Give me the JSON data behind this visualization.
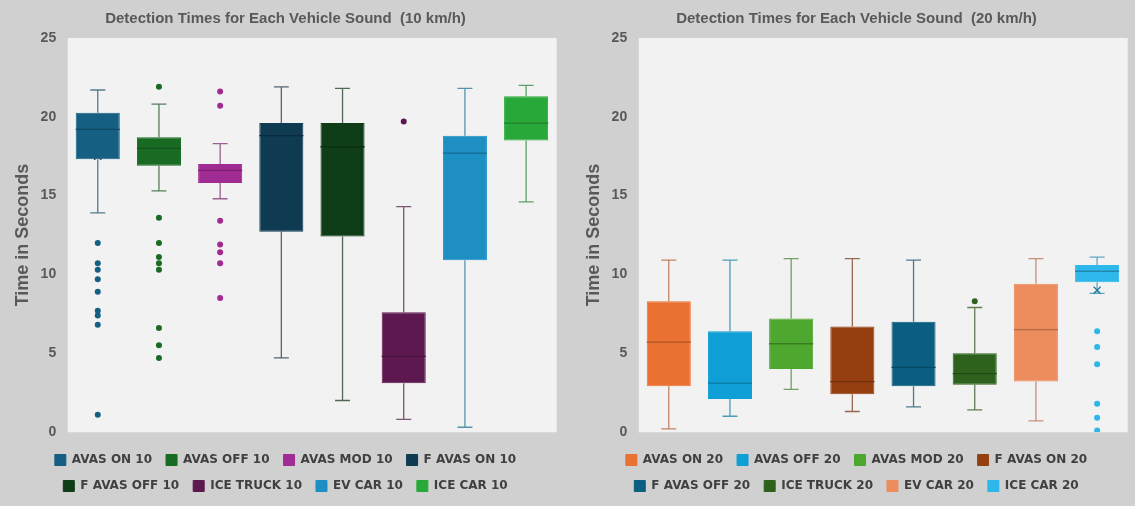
{
  "chart_data": [
    {
      "type": "box",
      "title": "Detection Times for Each Vehicle Sound  (10 km/h)",
      "ylabel": "Time in Seconds",
      "categories": [
        null,
        null,
        null,
        null,
        null,
        null,
        null,
        null
      ],
      "ylim": [
        0,
        25
      ],
      "yticks": [
        0,
        5,
        10,
        15,
        20,
        25
      ],
      "tick_labels": "y",
      "legend": "bottom",
      "series": [
        {
          "name": "AVAS ON 10",
          "color": "#156082",
          "boxes": [
            {
              "low": 13.9,
              "q1": 17.3,
              "median": 19.2,
              "q3": 20.25,
              "high": 21.7,
              "mean": 17.5,
              "outliers": [
                12.0,
                10.7,
                10.3,
                9.7,
                8.9,
                7.7,
                7.4,
                6.8,
                1.1
              ]
            },
            null,
            null,
            null,
            null,
            null,
            null,
            null
          ]
        },
        {
          "name": "AVAS OFF 10",
          "color": "#196b24",
          "boxes": [
            null,
            {
              "low": 15.3,
              "q1": 16.9,
              "median": 18.0,
              "q3": 18.7,
              "high": 20.8,
              "mean": 17.3,
              "outliers": [
                21.9,
                13.6,
                12.0,
                11.1,
                10.7,
                10.3,
                6.6,
                5.5,
                4.7
              ]
            },
            null,
            null,
            null,
            null,
            null,
            null
          ]
        },
        {
          "name": "AVAS MOD 10",
          "color": "#a02b93",
          "boxes": [
            null,
            null,
            {
              "low": 14.8,
              "q1": 15.8,
              "median": 16.6,
              "q3": 17.0,
              "high": 18.3,
              "mean": 16.2,
              "outliers": [
                21.6,
                20.7,
                13.4,
                11.9,
                11.4,
                10.7,
                8.5
              ]
            },
            null,
            null,
            null,
            null,
            null
          ]
        },
        {
          "name": "F AVAS ON 10",
          "color": "#0e3a52",
          "boxes": [
            null,
            null,
            null,
            {
              "low": 4.7,
              "q1": 12.7,
              "median": 18.8,
              "q3": 19.6,
              "high": 21.9,
              "mean": 16.3
            },
            null,
            null,
            null,
            null
          ]
        },
        {
          "name": "F AVAS OFF 10",
          "color": "#0e3d17",
          "boxes": [
            null,
            null,
            null,
            null,
            {
              "low": 2.0,
              "q1": 12.4,
              "median": 18.1,
              "q3": 19.6,
              "high": 21.8,
              "mean": 15.9
            },
            null,
            null,
            null
          ]
        },
        {
          "name": "ICE TRUCK 10",
          "color": "#5e1850",
          "boxes": [
            null,
            null,
            null,
            null,
            null,
            {
              "low": 0.8,
              "q1": 3.1,
              "median": 4.8,
              "q3": 7.6,
              "high": 14.3,
              "mean": 5.7,
              "outliers": [
                19.7
              ]
            },
            null,
            null
          ]
        },
        {
          "name": "EV CAR 10",
          "color": "#1e8fc3",
          "boxes": [
            null,
            null,
            null,
            null,
            null,
            null,
            {
              "low": 0.3,
              "q1": 10.9,
              "median": 17.7,
              "q3": 18.8,
              "high": 21.8,
              "mean": 15.3
            },
            null
          ]
        },
        {
          "name": "ICE CAR 10",
          "color": "#29a83a",
          "boxes": [
            null,
            null,
            null,
            null,
            null,
            null,
            null,
            {
              "low": 14.6,
              "q1": 18.5,
              "median": 19.6,
              "q3": 21.3,
              "high": 22.0,
              "mean": 19.6
            }
          ]
        }
      ]
    },
    {
      "type": "box",
      "title": "Detection Times for Each Vehicle Sound  (20 km/h)",
      "ylabel": "Time in Seconds",
      "categories": [
        null,
        null,
        null,
        null,
        null,
        null,
        null,
        null
      ],
      "ylim": [
        0,
        25
      ],
      "yticks": [
        0,
        5,
        10,
        15,
        20,
        25
      ],
      "tick_labels": "y",
      "legend": "bottom",
      "series": [
        {
          "name": "AVAS ON 20",
          "color": "#e97132",
          "boxes": [
            {
              "low": 0.2,
              "q1": 2.9,
              "median": 5.7,
              "q3": 8.3,
              "high": 10.9,
              "mean": 5.5
            },
            null,
            null,
            null,
            null,
            null,
            null,
            null
          ]
        },
        {
          "name": "AVAS OFF 20",
          "color": "#0f9ed5",
          "boxes": [
            null,
            {
              "low": 1.0,
              "q1": 2.1,
              "median": 3.1,
              "q3": 6.4,
              "high": 10.9,
              "mean": 4.3
            },
            null,
            null,
            null,
            null,
            null,
            null
          ]
        },
        {
          "name": "AVAS MOD 20",
          "color": "#4ea72e",
          "boxes": [
            null,
            null,
            {
              "low": 2.7,
              "q1": 4.0,
              "median": 5.6,
              "q3": 7.2,
              "high": 11.0,
              "mean": 5.9
            },
            null,
            null,
            null,
            null,
            null
          ]
        },
        {
          "name": "F AVAS ON 20",
          "color": "#953e10",
          "boxes": [
            null,
            null,
            null,
            {
              "low": 1.3,
              "q1": 2.4,
              "median": 3.2,
              "q3": 6.7,
              "high": 11.0,
              "mean": 4.6
            },
            null,
            null,
            null,
            null
          ]
        },
        {
          "name": "F AVAS OFF 20",
          "color": "#0b5e80",
          "boxes": [
            null,
            null,
            null,
            null,
            {
              "low": 1.6,
              "q1": 2.9,
              "median": 4.1,
              "q3": 7.0,
              "high": 10.9,
              "mean": 5.1
            },
            null,
            null,
            null
          ]
        },
        {
          "name": "ICE TRUCK 20",
          "color": "#2e621c",
          "boxes": [
            null,
            null,
            null,
            null,
            null,
            {
              "low": 1.4,
              "q1": 3.0,
              "median": 3.7,
              "q3": 5.0,
              "high": 7.9,
              "mean": 4.1,
              "outliers": [
                8.3
              ]
            },
            null,
            null
          ]
        },
        {
          "name": "EV CAR 20",
          "color": "#ed8c5c",
          "boxes": [
            null,
            null,
            null,
            null,
            null,
            null,
            {
              "low": 0.7,
              "q1": 3.2,
              "median": 6.5,
              "q3": 9.4,
              "high": 11.0,
              "mean": 6.6
            },
            null
          ]
        },
        {
          "name": "ICE CAR 20",
          "color": "#2db7ea",
          "boxes": [
            null,
            null,
            null,
            null,
            null,
            null,
            null,
            {
              "low": 8.8,
              "q1": 9.5,
              "median": 10.2,
              "q3": 10.6,
              "high": 11.1,
              "mean": 9.0,
              "outliers": [
                6.4,
                5.4,
                4.3,
                1.8,
                0.9,
                0.1
              ]
            }
          ]
        }
      ]
    }
  ]
}
